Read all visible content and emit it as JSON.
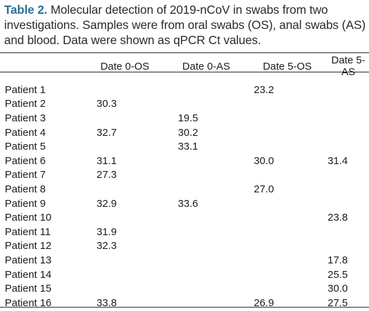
{
  "caption": {
    "label": "Table 2.",
    "text": " Molecular detection of 2019-nCoV in swabs from two investigations. Samples were from oral swabs (OS), anal swabs (AS) and blood. Data were shown as qPCR Ct values."
  },
  "table": {
    "headers": [
      "",
      "Date 0-OS",
      "Date 0-AS",
      "Date 5-OS",
      "Date 5-AS"
    ],
    "rows": [
      [
        "Patient 1",
        "",
        "",
        "23.2",
        ""
      ],
      [
        "Patient 2",
        "30.3",
        "",
        "",
        ""
      ],
      [
        "Patient 3",
        "",
        "19.5",
        "",
        ""
      ],
      [
        "Patient 4",
        "32.7",
        "30.2",
        "",
        ""
      ],
      [
        "Patient 5",
        "",
        "33.1",
        "",
        ""
      ],
      [
        "Patient 6",
        "31.1",
        "",
        "30.0",
        "31.4"
      ],
      [
        "Patient 7",
        "27.3",
        "",
        "",
        ""
      ],
      [
        "Patient 8",
        "",
        "",
        "27.0",
        ""
      ],
      [
        "Patient 9",
        "32.9",
        "33.6",
        "",
        ""
      ],
      [
        "Patient 10",
        "",
        "",
        "",
        "23.8"
      ],
      [
        "Patient 11",
        "31.9",
        "",
        "",
        ""
      ],
      [
        "Patient 12",
        "32.3",
        "",
        "",
        ""
      ],
      [
        "Patient 13",
        "",
        "",
        "",
        "17.8"
      ],
      [
        "Patient 14",
        "",
        "",
        "",
        "25.5"
      ],
      [
        "Patient 15",
        "",
        "",
        "",
        "30.0"
      ],
      [
        "Patient 16",
        "33.8",
        "",
        "26.9",
        "27.5"
      ]
    ]
  }
}
